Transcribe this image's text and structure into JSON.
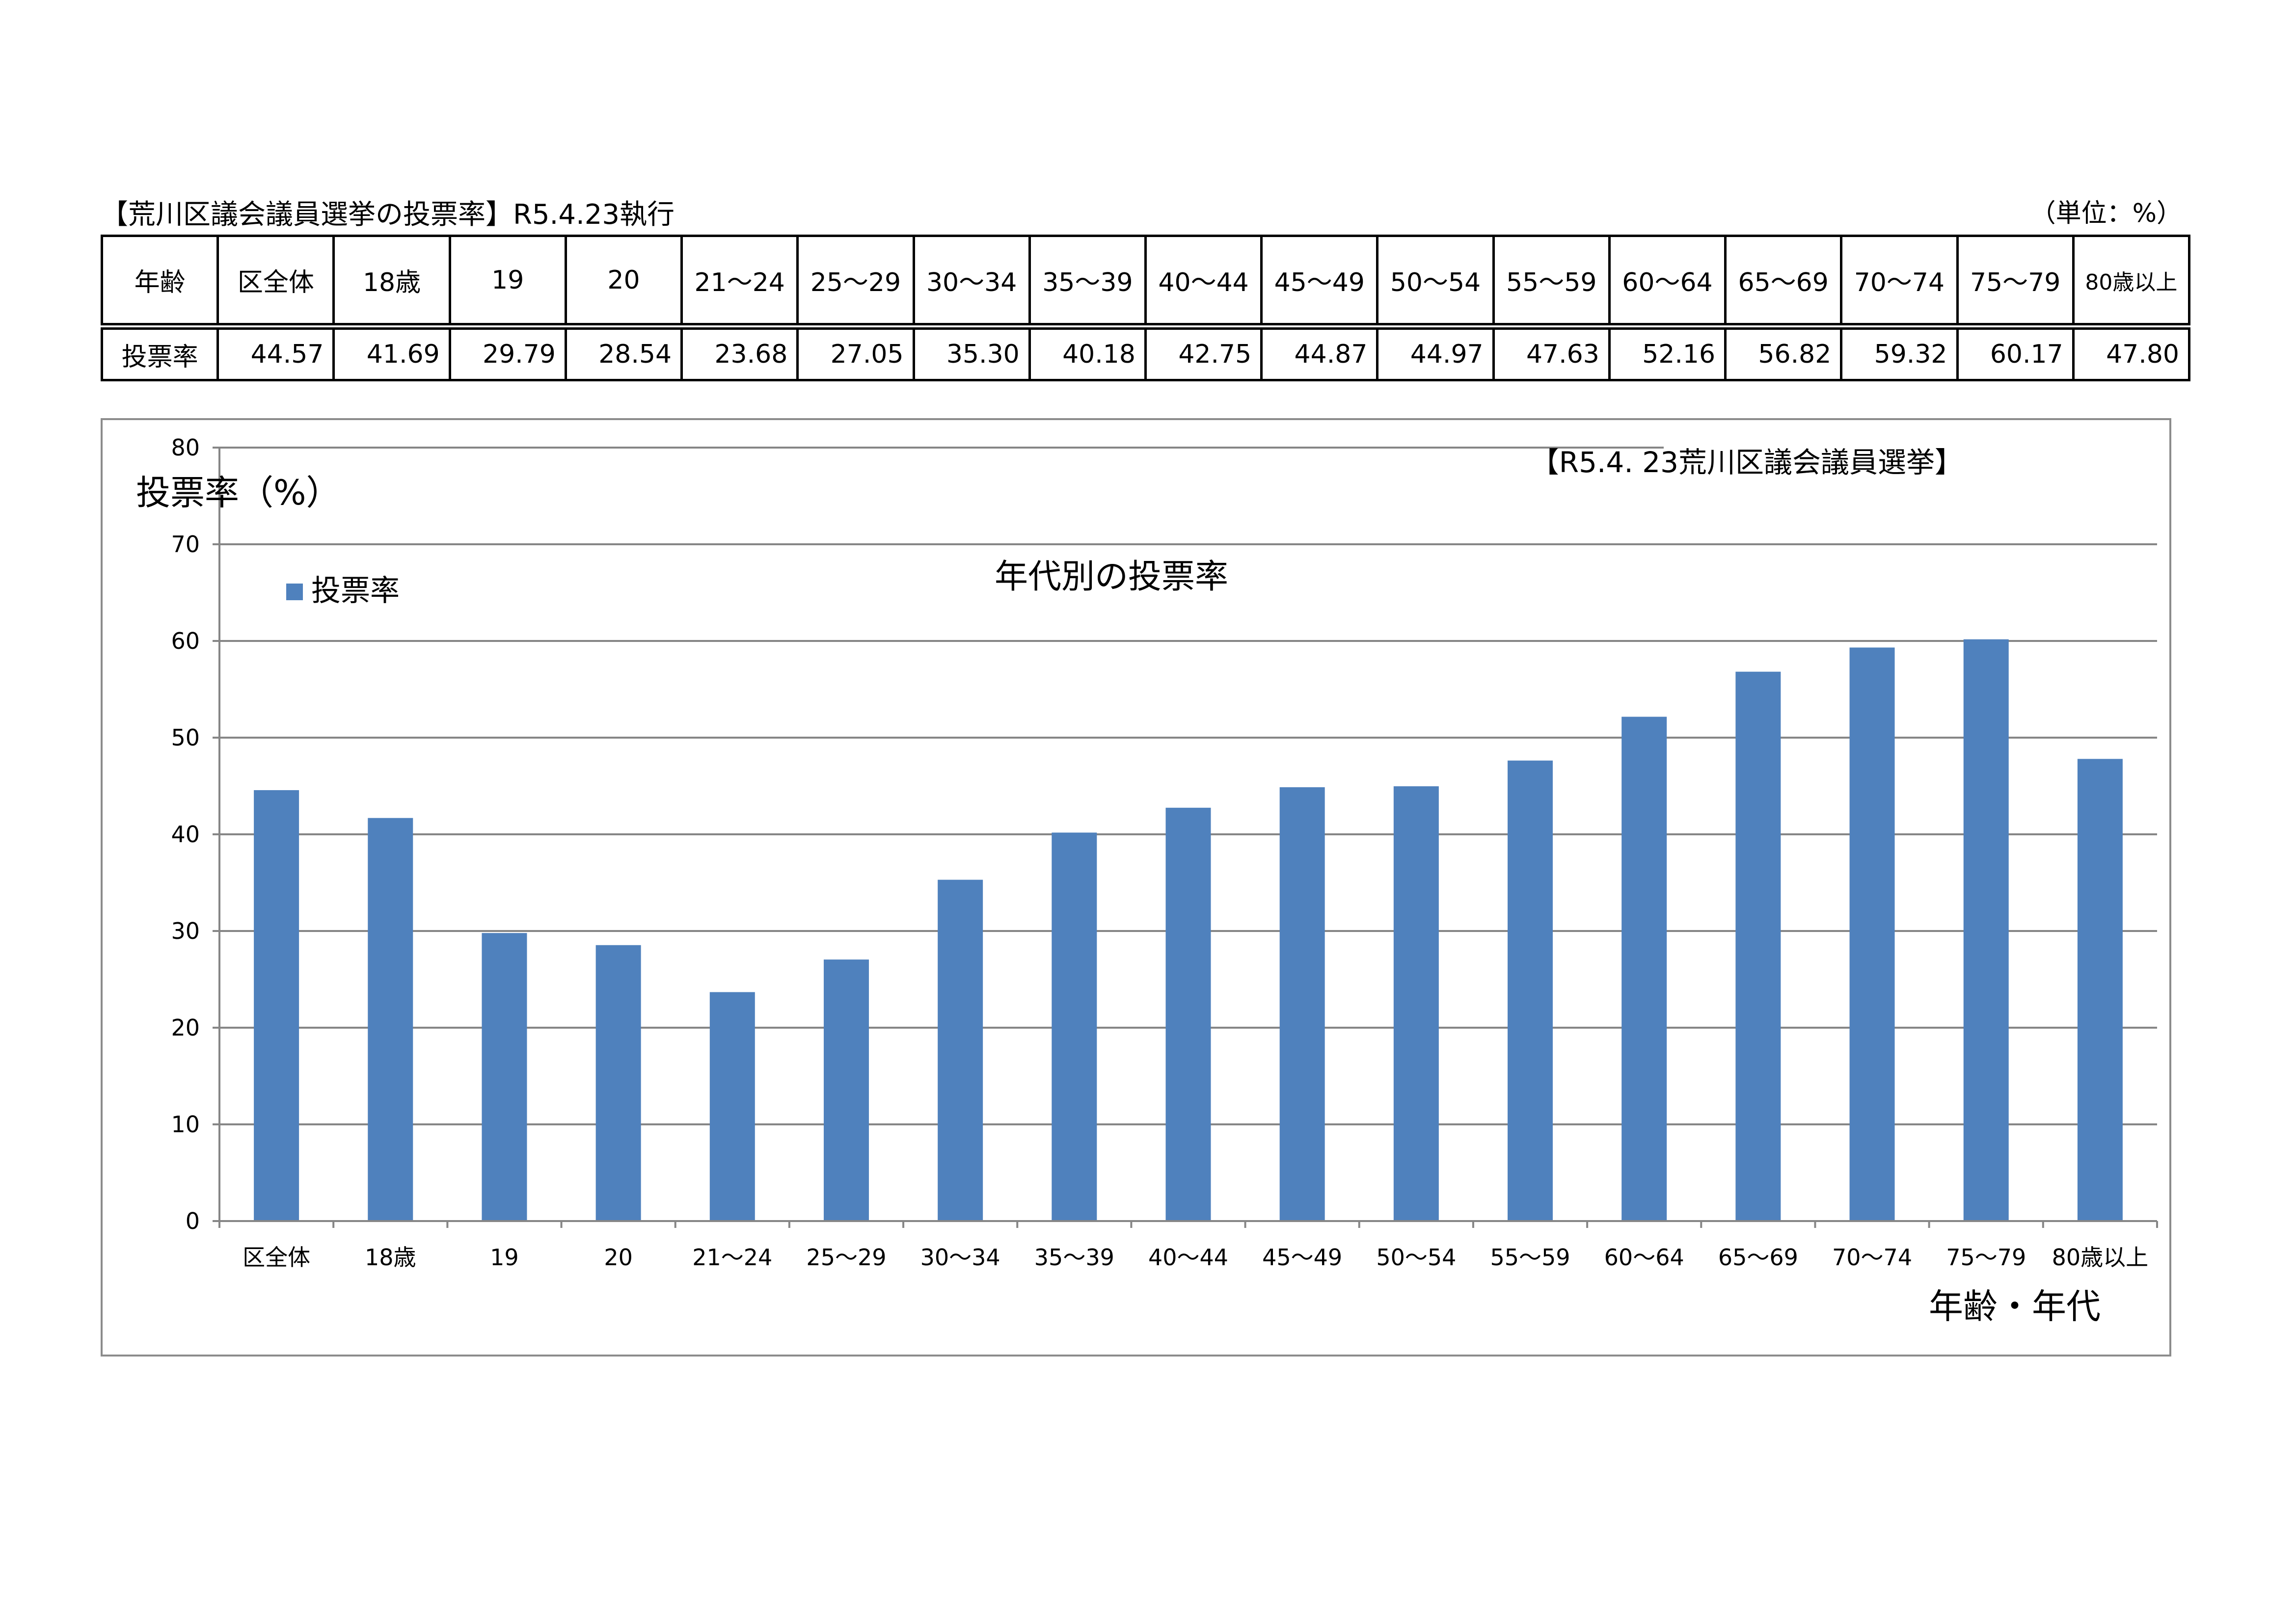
{
  "header": {
    "title": "【荒川区議会議員選挙の投票率】R5.4.23執行",
    "unit": "（単位：%）"
  },
  "table": {
    "row_labels": [
      "年齢",
      "投票率"
    ],
    "columns": [
      "区全体",
      "18歳",
      "19",
      "20",
      "21～24",
      "25～29",
      "30～34",
      "35～39",
      "40～44",
      "45～49",
      "50～54",
      "55～59",
      "60～64",
      "65～69",
      "70～74",
      "75～79",
      "80歳以上"
    ],
    "values": [
      "44.57",
      "41.69",
      "29.79",
      "28.54",
      "23.68",
      "27.05",
      "35.30",
      "40.18",
      "42.75",
      "44.87",
      "44.97",
      "47.63",
      "52.16",
      "56.82",
      "59.32",
      "60.17",
      "47.80"
    ]
  },
  "chart_data": {
    "type": "bar",
    "title": "年代別の投票率",
    "subtitle": "【R5.4. 23荒川区議会議員選挙】",
    "ylabel": "投票率（%）",
    "xlabel": "年齢・年代",
    "categories": [
      "区全体",
      "18歳",
      "19",
      "20",
      "21～24",
      "25～29",
      "30～34",
      "35～39",
      "40～44",
      "45～49",
      "50～54",
      "55～59",
      "60～64",
      "65～69",
      "70～74",
      "75～79",
      "80歳以上"
    ],
    "series": [
      {
        "name": "投票率",
        "values": [
          44.57,
          41.69,
          29.79,
          28.54,
          23.68,
          27.05,
          35.3,
          40.18,
          42.75,
          44.87,
          44.97,
          47.63,
          52.16,
          56.82,
          59.32,
          60.17,
          47.8
        ]
      }
    ],
    "ylim": [
      0,
      80
    ],
    "yticks": [
      0,
      10,
      20,
      30,
      40,
      50,
      60,
      70,
      80
    ],
    "grid": true,
    "legend_position": "top-left",
    "bar_color": "#4f81bd",
    "grid_color": "#868686"
  }
}
